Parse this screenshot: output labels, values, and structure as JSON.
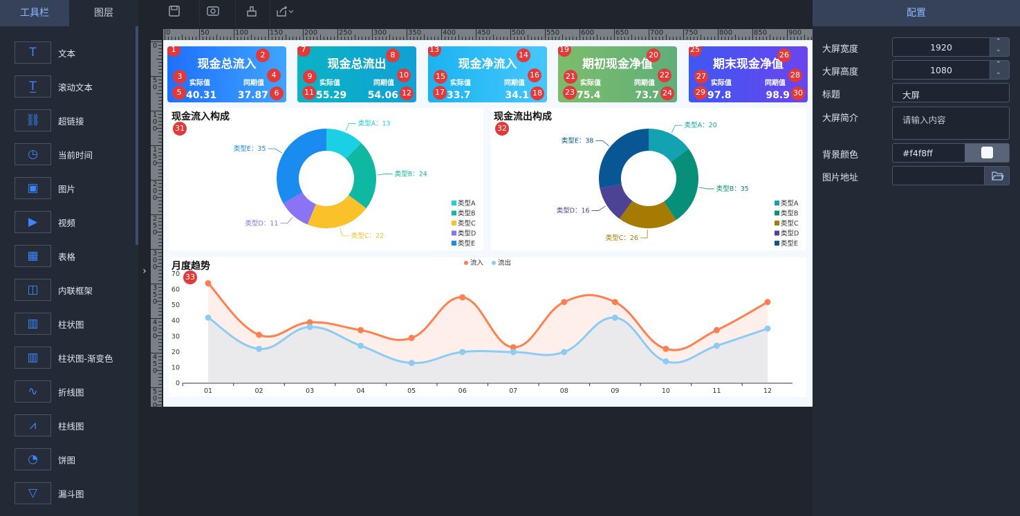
{
  "left_tabs": [
    "工具栏",
    "图层"
  ],
  "tools": [
    {
      "label": "文本",
      "icon": "text-icon"
    },
    {
      "label": "滚动文本",
      "icon": "scroll-text-icon"
    },
    {
      "label": "超链接",
      "icon": "link-icon"
    },
    {
      "label": "当前时间",
      "icon": "clock-icon"
    },
    {
      "label": "图片",
      "icon": "image-icon"
    },
    {
      "label": "视频",
      "icon": "video-icon"
    },
    {
      "label": "表格",
      "icon": "table-icon"
    },
    {
      "label": "内联框架",
      "icon": "iframe-icon"
    },
    {
      "label": "柱状图",
      "icon": "bar-chart-icon"
    },
    {
      "label": "柱状图-渐变色",
      "icon": "gradient-bar-chart-icon"
    },
    {
      "label": "折线图",
      "icon": "line-chart-icon"
    },
    {
      "label": "柱线图",
      "icon": "bar-line-chart-icon"
    },
    {
      "label": "饼图",
      "icon": "pie-chart-icon"
    },
    {
      "label": "漏斗图",
      "icon": "funnel-chart-icon"
    }
  ],
  "toolbar": {
    "icons": [
      "save-icon",
      "preview-icon",
      "clear-icon",
      "export-icon"
    ]
  },
  "ruler": {
    "h_labels": [
      "0",
      "50",
      "100",
      "150",
      "200",
      "250",
      "300",
      "350",
      "400",
      "450",
      "500",
      "550",
      "600",
      "650",
      "700",
      "750",
      "800",
      "850",
      "900"
    ],
    "v_labels": [
      "0",
      "50",
      "100",
      "150",
      "200",
      "250",
      "300",
      "350",
      "400",
      "450",
      "500"
    ]
  },
  "cards": [
    {
      "title": "现金总流入",
      "actual_label": "实际值",
      "prior_label": "同期值",
      "actual": "40.31",
      "prior": "37.87",
      "badges": [
        "1",
        "2",
        "3",
        "4",
        "5",
        "6"
      ],
      "colors": [
        "#1e6fff",
        "#3fa5ff"
      ]
    },
    {
      "title": "现金总流出",
      "actual_label": "实际值",
      "prior_label": "同期值",
      "actual": "55.29",
      "prior": "54.06",
      "badges": [
        "7",
        "8",
        "9",
        "10",
        "11",
        "12"
      ],
      "colors": [
        "#0ab3c4",
        "#12a0d6"
      ]
    },
    {
      "title": "现金净流入",
      "actual_label": "实际值",
      "prior_label": "同期值",
      "actual": "33.7",
      "prior": "34.1",
      "badges": [
        "13",
        "14",
        "15",
        "16",
        "17",
        "18"
      ],
      "colors": [
        "#1bb4f0",
        "#47c6ff"
      ]
    },
    {
      "title": "期初现金净值",
      "actual_label": "实际值",
      "prior_label": "同期值",
      "actual": "75.4",
      "prior": "73.7",
      "badges": [
        "19",
        "20",
        "21",
        "22",
        "23",
        "24"
      ],
      "colors": [
        "#7cbd6b",
        "#5fae7a"
      ]
    },
    {
      "title": "期末现金净值",
      "actual_label": "实际值",
      "prior_label": "同期值",
      "actual": "97.8",
      "prior": "98.9",
      "badges": [
        "25",
        "26",
        "27",
        "28",
        "29",
        "30"
      ],
      "colors": [
        "#3f57f3",
        "#6a45ee"
      ]
    }
  ],
  "chart_data": [
    {
      "type": "pie",
      "title": "现金流入构成",
      "badge": "31",
      "categories": [
        "类型A",
        "类型B",
        "类型C",
        "类型D",
        "类型E"
      ],
      "values": [
        13,
        24,
        22,
        11,
        35
      ],
      "slice_labels": [
        "类型A：13",
        "类型B：24",
        "类型C：22",
        "类型D：11",
        "类型E：35"
      ],
      "colors": [
        "#1bd0e4",
        "#0fb8a0",
        "#fbc12a",
        "#8a73f5",
        "#1a8bef"
      ],
      "legend": "bottom-right"
    },
    {
      "type": "pie",
      "title": "现金流出构成",
      "badge": "32",
      "categories": [
        "类型A",
        "类型B",
        "类型C",
        "类型D",
        "类型E"
      ],
      "values": [
        20,
        35,
        26,
        16,
        38
      ],
      "slice_labels": [
        "类型A：20",
        "类型B：35",
        "类型C：26",
        "类型D：16",
        "类型E：38"
      ],
      "colors": [
        "#12a2b1",
        "#088f7a",
        "#a57b02",
        "#4c4296",
        "#085694"
      ],
      "legend": "bottom-right"
    },
    {
      "type": "area",
      "title": "月度趋势",
      "badge": "33",
      "categories": [
        "01",
        "02",
        "03",
        "04",
        "05",
        "06",
        "07",
        "08",
        "09",
        "10",
        "11",
        "12"
      ],
      "series": [
        {
          "name": "流入",
          "values": [
            64,
            31,
            39,
            34,
            29,
            55,
            23,
            52,
            52,
            22,
            34,
            52
          ],
          "color": "#ff7f4f"
        },
        {
          "name": "流出",
          "values": [
            42,
            22,
            36,
            24,
            13,
            20,
            20,
            20,
            42,
            14,
            24,
            35
          ],
          "color": "#8ccbf5"
        }
      ],
      "y_ticks": [
        "0",
        "10",
        "20",
        "30",
        "40",
        "50",
        "60",
        "70"
      ],
      "ylim": [
        0,
        70
      ],
      "legend": "top-center",
      "grid": false
    }
  ],
  "config": {
    "title": "配置",
    "fields": [
      {
        "label": "大屏宽度",
        "value": "1920",
        "kind": "number"
      },
      {
        "label": "大屏高度",
        "value": "1080",
        "kind": "number"
      },
      {
        "label": "标题",
        "value": "大屏",
        "kind": "text"
      },
      {
        "label": "大屏简介",
        "placeholder": "请输入内容",
        "kind": "textarea"
      },
      {
        "label": "背景颜色",
        "value": "#f4f8ff",
        "kind": "color"
      },
      {
        "label": "图片地址",
        "value": "",
        "kind": "file"
      }
    ]
  }
}
